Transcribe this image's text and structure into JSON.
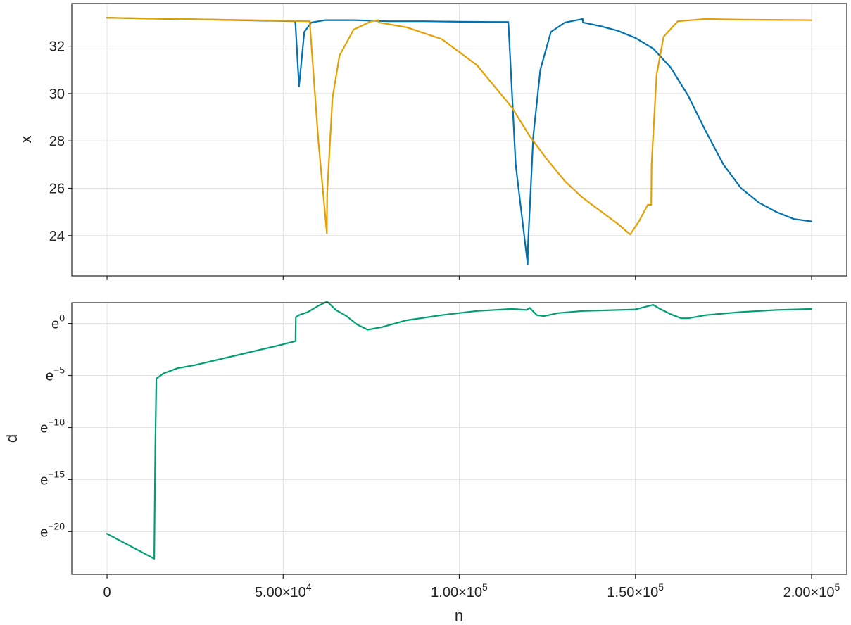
{
  "chart_data": [
    {
      "type": "line",
      "title": "",
      "xlabel": "",
      "ylabel": "x",
      "xlim": [
        -10000,
        210000
      ],
      "ylim": [
        22.3,
        33.8
      ],
      "xticks": [
        0,
        50000,
        100000,
        150000,
        200000
      ],
      "xtick_labels": [
        "",
        "",
        "",
        "",
        ""
      ],
      "yticks": [
        24,
        26,
        28,
        30,
        32
      ],
      "ytick_labels": [
        "24",
        "26",
        "28",
        "30",
        "32"
      ],
      "grid": true,
      "legend": "none",
      "series": [
        {
          "color": "#0072b2",
          "x": [
            0,
            10000,
            30000,
            53400,
            53500,
            54500,
            56000,
            58000,
            62000,
            70000,
            80000,
            90000,
            100000,
            110000,
            113900,
            114000,
            116000,
            119400,
            119500,
            121000,
            123000,
            126000,
            130000,
            135000,
            135100,
            140000,
            145000,
            150000,
            155000,
            160000,
            165000,
            170000,
            175000,
            180000,
            185000,
            190000,
            195000,
            200000
          ],
          "y": [
            33.2,
            33.17,
            33.12,
            33.05,
            32.9,
            30.3,
            32.6,
            33.0,
            33.1,
            33.1,
            33.05,
            33.05,
            33.03,
            33.02,
            33.02,
            32.8,
            27.0,
            22.8,
            23.6,
            28.2,
            31.0,
            32.6,
            33.0,
            33.15,
            33.0,
            32.85,
            32.65,
            32.35,
            31.9,
            31.1,
            29.9,
            28.4,
            27.0,
            26.0,
            25.4,
            25.0,
            24.7,
            24.6
          ]
        },
        {
          "color": "#e69f00",
          "x": [
            0,
            20000,
            40000,
            57500,
            57600,
            60000,
            62400,
            62500,
            64000,
            66000,
            70000,
            75000,
            77000,
            77100,
            85000,
            95000,
            105000,
            115000,
            120000,
            125000,
            130000,
            135000,
            140000,
            145000,
            148500,
            151000,
            153500,
            154500,
            154600,
            156000,
            158000,
            162000,
            170000,
            180000,
            200000
          ],
          "y": [
            33.2,
            33.15,
            33.1,
            33.05,
            32.9,
            28.0,
            24.1,
            25.8,
            29.8,
            31.6,
            32.7,
            33.05,
            33.1,
            33.0,
            32.8,
            32.3,
            31.2,
            29.4,
            28.2,
            27.2,
            26.3,
            25.6,
            25.05,
            24.5,
            24.05,
            24.6,
            25.3,
            25.3,
            27.0,
            30.8,
            32.4,
            33.05,
            33.15,
            33.12,
            33.1
          ]
        }
      ]
    },
    {
      "type": "line",
      "title": "",
      "xlabel": "n",
      "ylabel": "d",
      "yscale": "log (base e)",
      "xlim": [
        -10000,
        210000
      ],
      "ylim": [
        -24.1,
        2.0
      ],
      "xticks": [
        0,
        50000,
        100000,
        150000,
        200000
      ],
      "xtick_labels": [
        "0",
        "5.00×10",
        "1.00×10",
        "1.50×10",
        "2.00×10"
      ],
      "xtick_exponents": [
        "",
        "4",
        "5",
        "5",
        "5"
      ],
      "yticks": [
        -20,
        -15,
        -10,
        -5,
        0
      ],
      "ytick_base": "e",
      "ytick_exponents": [
        "−20",
        "−15",
        "−10",
        "−5",
        "0"
      ],
      "grid": true,
      "legend": "none",
      "series": [
        {
          "color": "#009e73",
          "x": [
            0,
            13400,
            13500,
            13700,
            14000,
            16000,
            20000,
            25000,
            30000,
            35000,
            40000,
            45000,
            50000,
            53500,
            53600,
            54500,
            57000,
            60000,
            62500,
            65000,
            68000,
            71000,
            74000,
            78000,
            85000,
            95000,
            105000,
            115000,
            119000,
            120000,
            122000,
            124000,
            128000,
            135000,
            145000,
            150000,
            154000,
            155000,
            157000,
            160000,
            163000,
            165000,
            170000,
            180000,
            190000,
            200000
          ],
          "y": [
            -20.2,
            -22.6,
            -19.0,
            -12.0,
            -5.3,
            -4.8,
            -4.3,
            -4.0,
            -3.6,
            -3.2,
            -2.8,
            -2.4,
            -2.0,
            -1.7,
            0.6,
            0.8,
            1.1,
            1.7,
            2.1,
            1.3,
            0.7,
            -0.1,
            -0.6,
            -0.35,
            0.3,
            0.8,
            1.2,
            1.4,
            1.3,
            1.5,
            0.8,
            0.7,
            1.0,
            1.2,
            1.3,
            1.35,
            1.7,
            1.8,
            1.4,
            0.9,
            0.5,
            0.5,
            0.8,
            1.1,
            1.3,
            1.4
          ]
        }
      ]
    }
  ]
}
